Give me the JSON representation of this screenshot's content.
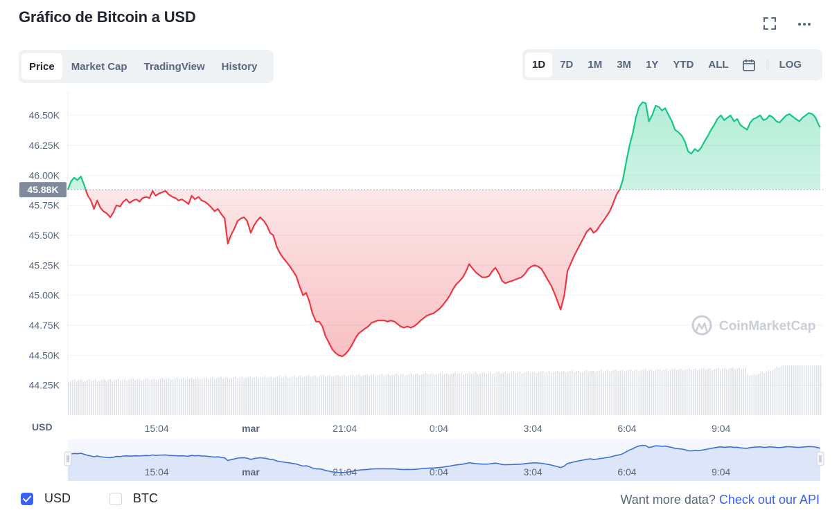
{
  "title": "Gráfico de Bitcoin a USD",
  "icons": {
    "fullscreen": "fullscreen-icon",
    "more": "more-icon",
    "calendar": "calendar-icon",
    "logo": "coinmarketcap-logo"
  },
  "tabs": [
    {
      "label": "Price",
      "active": true
    },
    {
      "label": "Market Cap",
      "active": false
    },
    {
      "label": "TradingView",
      "active": false
    },
    {
      "label": "History",
      "active": false
    }
  ],
  "ranges": [
    {
      "label": "1D",
      "active": true
    },
    {
      "label": "7D",
      "active": false
    },
    {
      "label": "1M",
      "active": false
    },
    {
      "label": "3M",
      "active": false
    },
    {
      "label": "1Y",
      "active": false
    },
    {
      "label": "YTD",
      "active": false
    },
    {
      "label": "ALL",
      "active": false
    }
  ],
  "log_label": "LOG",
  "watermark": "CoinMarketCap",
  "colors": {
    "up": "#16c784",
    "down": "#ea3943",
    "accent": "#3861fb",
    "baseline_tag": "#808a9d",
    "navigator": "#3d6fd8"
  },
  "chart_data": {
    "type": "line",
    "ylabel": "USD",
    "ylim": [
      44000,
      46700
    ],
    "yticks": [
      44250,
      44500,
      44750,
      45000,
      45250,
      45500,
      45750,
      46000,
      46250,
      46500
    ],
    "ytick_labels": [
      "44.25K",
      "44.50K",
      "44.75K",
      "45.00K",
      "45.25K",
      "45.50K",
      "45.75K",
      "46.00K",
      "46.25K",
      "46.50K"
    ],
    "baseline": 45880,
    "baseline_label": "45.88K",
    "x_range": [
      0,
      1440
    ],
    "xtick_positions": [
      170,
      350,
      530,
      710,
      890,
      1070,
      1250
    ],
    "xtick_labels": [
      "15:04",
      "mar",
      "21:04",
      "0:04",
      "3:04",
      "6:04",
      "9:04"
    ],
    "series": [
      {
        "values": [
          [
            0,
            45880
          ],
          [
            6,
            45950
          ],
          [
            12,
            45980
          ],
          [
            18,
            45960
          ],
          [
            25,
            45990
          ],
          [
            31,
            45920
          ],
          [
            38,
            45830
          ],
          [
            44,
            45790
          ],
          [
            50,
            45720
          ],
          [
            56,
            45790
          ],
          [
            62,
            45730
          ],
          [
            68,
            45700
          ],
          [
            75,
            45680
          ],
          [
            81,
            45650
          ],
          [
            87,
            45690
          ],
          [
            93,
            45750
          ],
          [
            100,
            45740
          ],
          [
            106,
            45780
          ],
          [
            112,
            45800
          ],
          [
            118,
            45770
          ],
          [
            125,
            45790
          ],
          [
            131,
            45800
          ],
          [
            137,
            45780
          ],
          [
            143,
            45810
          ],
          [
            150,
            45820
          ],
          [
            156,
            45810
          ],
          [
            162,
            45870
          ],
          [
            168,
            45830
          ],
          [
            175,
            45850
          ],
          [
            181,
            45860
          ],
          [
            187,
            45870
          ],
          [
            193,
            45840
          ],
          [
            200,
            45820
          ],
          [
            206,
            45810
          ],
          [
            212,
            45790
          ],
          [
            218,
            45800
          ],
          [
            225,
            45780
          ],
          [
            231,
            45760
          ],
          [
            237,
            45830
          ],
          [
            243,
            45800
          ],
          [
            250,
            45820
          ],
          [
            256,
            45790
          ],
          [
            262,
            45780
          ],
          [
            268,
            45760
          ],
          [
            275,
            45730
          ],
          [
            281,
            45700
          ],
          [
            287,
            45720
          ],
          [
            293,
            45680
          ],
          [
            300,
            45640
          ],
          [
            306,
            45430
          ],
          [
            312,
            45500
          ],
          [
            318,
            45550
          ],
          [
            325,
            45620
          ],
          [
            331,
            45640
          ],
          [
            337,
            45650
          ],
          [
            343,
            45620
          ],
          [
            350,
            45520
          ],
          [
            356,
            45580
          ],
          [
            362,
            45620
          ],
          [
            368,
            45650
          ],
          [
            375,
            45620
          ],
          [
            381,
            45580
          ],
          [
            387,
            45520
          ],
          [
            393,
            45500
          ],
          [
            400,
            45400
          ],
          [
            406,
            45350
          ],
          [
            412,
            45310
          ],
          [
            418,
            45280
          ],
          [
            425,
            45240
          ],
          [
            431,
            45200
          ],
          [
            437,
            45160
          ],
          [
            443,
            45080
          ],
          [
            450,
            45000
          ],
          [
            456,
            45020
          ],
          [
            462,
            44950
          ],
          [
            468,
            44850
          ],
          [
            475,
            44780
          ],
          [
            481,
            44780
          ],
          [
            487,
            44740
          ],
          [
            493,
            44660
          ],
          [
            500,
            44600
          ],
          [
            506,
            44550
          ],
          [
            512,
            44520
          ],
          [
            518,
            44500
          ],
          [
            525,
            44490
          ],
          [
            531,
            44510
          ],
          [
            537,
            44540
          ],
          [
            543,
            44580
          ],
          [
            550,
            44640
          ],
          [
            556,
            44680
          ],
          [
            562,
            44700
          ],
          [
            568,
            44720
          ],
          [
            575,
            44740
          ],
          [
            581,
            44770
          ],
          [
            587,
            44780
          ],
          [
            593,
            44790
          ],
          [
            600,
            44790
          ],
          [
            606,
            44790
          ],
          [
            612,
            44780
          ],
          [
            618,
            44790
          ],
          [
            625,
            44780
          ],
          [
            631,
            44760
          ],
          [
            637,
            44740
          ],
          [
            643,
            44730
          ],
          [
            650,
            44740
          ],
          [
            656,
            44730
          ],
          [
            662,
            44740
          ],
          [
            668,
            44760
          ],
          [
            675,
            44790
          ],
          [
            681,
            44810
          ],
          [
            687,
            44830
          ],
          [
            693,
            44840
          ],
          [
            700,
            44850
          ],
          [
            706,
            44870
          ],
          [
            712,
            44890
          ],
          [
            718,
            44920
          ],
          [
            725,
            44960
          ],
          [
            731,
            45000
          ],
          [
            737,
            45050
          ],
          [
            743,
            45090
          ],
          [
            750,
            45120
          ],
          [
            756,
            45150
          ],
          [
            762,
            45200
          ],
          [
            768,
            45260
          ],
          [
            775,
            45220
          ],
          [
            781,
            45190
          ],
          [
            787,
            45170
          ],
          [
            793,
            45150
          ],
          [
            800,
            45150
          ],
          [
            806,
            45160
          ],
          [
            812,
            45200
          ],
          [
            818,
            45230
          ],
          [
            825,
            45180
          ],
          [
            831,
            45120
          ],
          [
            837,
            45100
          ],
          [
            843,
            45110
          ],
          [
            850,
            45120
          ],
          [
            856,
            45130
          ],
          [
            862,
            45140
          ],
          [
            868,
            45150
          ],
          [
            875,
            45180
          ],
          [
            881,
            45220
          ],
          [
            887,
            45240
          ],
          [
            893,
            45250
          ],
          [
            900,
            45240
          ],
          [
            906,
            45220
          ],
          [
            912,
            45180
          ],
          [
            918,
            45130
          ],
          [
            925,
            45080
          ],
          [
            931,
            45020
          ],
          [
            937,
            44950
          ],
          [
            943,
            44880
          ],
          [
            950,
            45000
          ],
          [
            956,
            45200
          ],
          [
            962,
            45260
          ],
          [
            968,
            45320
          ],
          [
            975,
            45380
          ],
          [
            981,
            45430
          ],
          [
            987,
            45480
          ],
          [
            993,
            45530
          ],
          [
            1000,
            45560
          ],
          [
            1006,
            45520
          ],
          [
            1012,
            45540
          ],
          [
            1018,
            45580
          ],
          [
            1025,
            45620
          ],
          [
            1031,
            45660
          ],
          [
            1037,
            45700
          ],
          [
            1043,
            45760
          ],
          [
            1050,
            45840
          ],
          [
            1056,
            45880
          ],
          [
            1062,
            45960
          ],
          [
            1068,
            46100
          ],
          [
            1075,
            46250
          ],
          [
            1081,
            46350
          ],
          [
            1087,
            46480
          ],
          [
            1093,
            46570
          ],
          [
            1100,
            46610
          ],
          [
            1106,
            46600
          ],
          [
            1112,
            46450
          ],
          [
            1118,
            46500
          ],
          [
            1125,
            46580
          ],
          [
            1131,
            46570
          ],
          [
            1137,
            46540
          ],
          [
            1143,
            46560
          ],
          [
            1150,
            46500
          ],
          [
            1156,
            46450
          ],
          [
            1162,
            46380
          ],
          [
            1168,
            46360
          ],
          [
            1175,
            46330
          ],
          [
            1181,
            46280
          ],
          [
            1187,
            46200
          ],
          [
            1193,
            46180
          ],
          [
            1200,
            46220
          ],
          [
            1206,
            46200
          ],
          [
            1212,
            46230
          ],
          [
            1218,
            46280
          ],
          [
            1225,
            46330
          ],
          [
            1231,
            46380
          ],
          [
            1237,
            46420
          ],
          [
            1243,
            46470
          ],
          [
            1250,
            46500
          ],
          [
            1256,
            46460
          ],
          [
            1262,
            46480
          ],
          [
            1268,
            46500
          ],
          [
            1275,
            46450
          ],
          [
            1281,
            46470
          ],
          [
            1287,
            46420
          ],
          [
            1293,
            46400
          ],
          [
            1300,
            46380
          ],
          [
            1306,
            46440
          ],
          [
            1312,
            46470
          ],
          [
            1318,
            46480
          ],
          [
            1325,
            46500
          ],
          [
            1331,
            46460
          ],
          [
            1337,
            46470
          ],
          [
            1343,
            46500
          ],
          [
            1350,
            46480
          ],
          [
            1356,
            46450
          ],
          [
            1362,
            46440
          ],
          [
            1368,
            46470
          ],
          [
            1375,
            46500
          ],
          [
            1381,
            46510
          ],
          [
            1387,
            46490
          ],
          [
            1393,
            46470
          ],
          [
            1400,
            46450
          ],
          [
            1406,
            46480
          ],
          [
            1412,
            46500
          ],
          [
            1418,
            46520
          ],
          [
            1425,
            46510
          ],
          [
            1431,
            46480
          ],
          [
            1437,
            46420
          ],
          [
            1440,
            46400
          ]
        ]
      }
    ]
  },
  "legend": {
    "usd_label": "USD",
    "btc_label": "BTC",
    "usd_checked": true,
    "btc_checked": false
  },
  "api": {
    "prompt": "Want more data?",
    "link": "Check out our API"
  }
}
